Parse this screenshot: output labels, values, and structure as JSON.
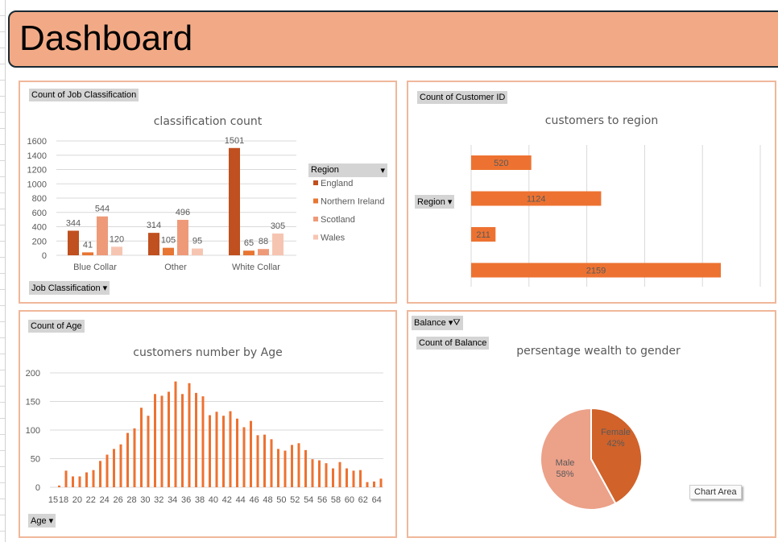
{
  "header": {
    "title": "Dashboard"
  },
  "colors": {
    "england": "#c0501f",
    "northern_ireland": "#e87532",
    "scotland": "#ee9a78",
    "wales": "#f6c5b2",
    "bar": "#ed7231",
    "female": "#d0622a",
    "male": "#eca189"
  },
  "panels": {
    "classification": {
      "field_button": "Count of Job Classification",
      "axis_button": "Job Classification",
      "legend_button": "Region"
    },
    "region": {
      "field_button": "Count of Customer ID",
      "axis_button": "Region"
    },
    "age": {
      "field_button": "Count of Age",
      "axis_button": "Age"
    },
    "gender": {
      "filter_button": "Balance",
      "field_button": "Count of Balance",
      "tooltip": "Chart Area"
    }
  },
  "chart_data": [
    {
      "type": "bar",
      "title": "classification count",
      "categories": [
        "Blue Collar",
        "Other",
        "White Collar"
      ],
      "ylim": [
        0,
        1600
      ],
      "yticks": [
        "0",
        "200",
        "400",
        "600",
        "800",
        "1000",
        "1200",
        "1400",
        "1600"
      ],
      "legend_position": "right",
      "series": [
        {
          "name": "England",
          "values": [
            344,
            314,
            1501
          ]
        },
        {
          "name": "Northern Ireland",
          "values": [
            41,
            105,
            65
          ]
        },
        {
          "name": "Scotland",
          "values": [
            544,
            496,
            88
          ]
        },
        {
          "name": "Wales",
          "values": [
            120,
            95,
            305
          ]
        }
      ]
    },
    {
      "type": "bar",
      "title": "customers to region",
      "orientation": "horizontal",
      "values": [
        520,
        1124,
        211,
        2159
      ],
      "xlim": [
        0,
        2500
      ]
    },
    {
      "type": "bar",
      "title": "customers number by Age",
      "ylim": [
        0,
        200
      ],
      "yticks": [
        "0",
        "50",
        "100",
        "150",
        "200"
      ],
      "xticks": [
        "15",
        "18",
        "20",
        "22",
        "24",
        "26",
        "28",
        "30",
        "32",
        "34",
        "36",
        "38",
        "40",
        "42",
        "44",
        "46",
        "48",
        "50",
        "52",
        "54",
        "56",
        "58",
        "60",
        "62",
        "64"
      ],
      "values": [
        3,
        29,
        19,
        19,
        26,
        30,
        46,
        57,
        67,
        75,
        95,
        103,
        139,
        125,
        163,
        160,
        167,
        185,
        163,
        182,
        165,
        159,
        126,
        132,
        125,
        133,
        120,
        105,
        116,
        91,
        92,
        84,
        67,
        64,
        74,
        77,
        65,
        49,
        47,
        42,
        33,
        44,
        33,
        29,
        30,
        9,
        10,
        15
      ]
    },
    {
      "type": "pie",
      "title": "persentage wealth to gender",
      "slices": [
        {
          "label": "Female",
          "value": 42,
          "text": "42%"
        },
        {
          "label": "Male",
          "value": 58,
          "text": "58%"
        }
      ]
    }
  ]
}
